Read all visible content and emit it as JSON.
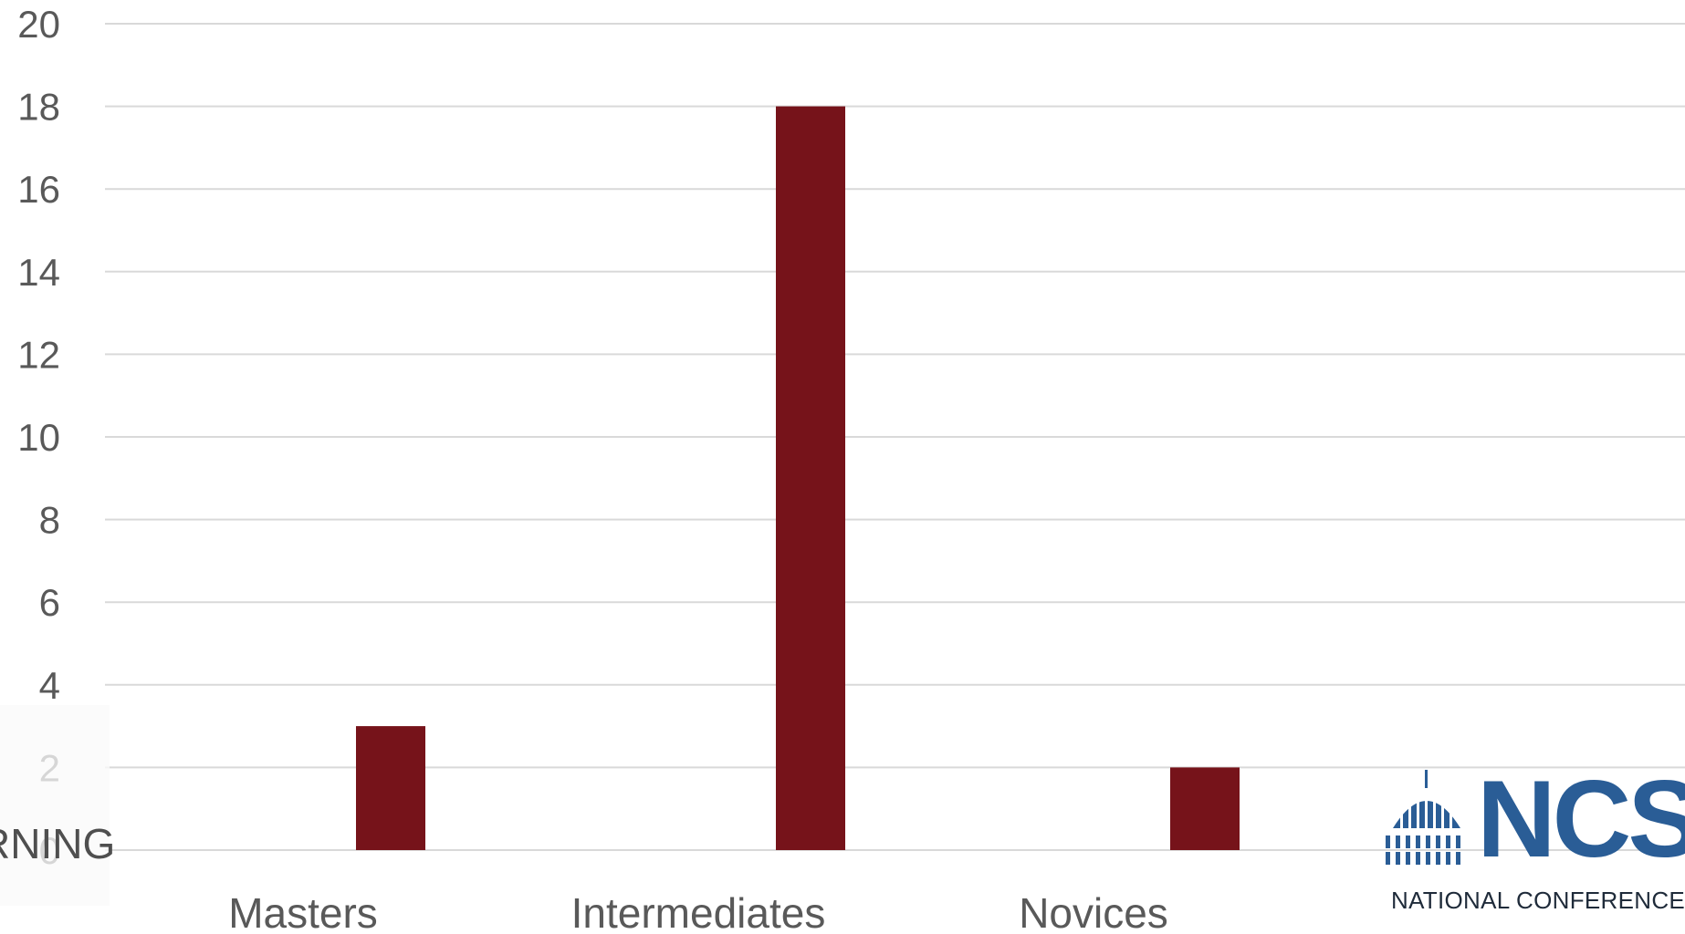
{
  "chart_data": {
    "type": "bar",
    "categories": [
      "Masters",
      "Intermediates",
      "Novices"
    ],
    "values": [
      3,
      18,
      2
    ],
    "ylim": [
      0,
      20
    ],
    "yticks": [
      0,
      2,
      4,
      6,
      8,
      10,
      12,
      14,
      16,
      18,
      20
    ],
    "grid": true,
    "bar_color": "#76131a",
    "legend": "none"
  },
  "overlay": {
    "edge_text": "RNING"
  },
  "logo": {
    "wordmark": "NCSL",
    "subtitle": "NATIONAL CONFERENCE OF STATE LEGISLATURES",
    "color": "#2a5d96"
  }
}
